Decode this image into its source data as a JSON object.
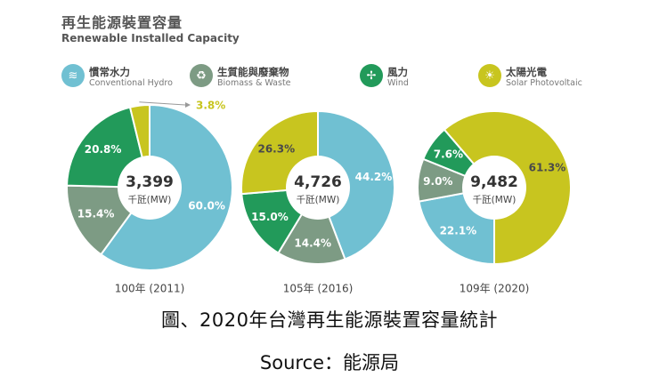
{
  "colors": {
    "hydro": "#70c0d2",
    "biomass": "#7d9b84",
    "wind": "#229a5a",
    "solar": "#c8c51f"
  },
  "header": {
    "title_zh": "再生能源裝置容量",
    "title_en": "Renewable Installed Capacity"
  },
  "legend": [
    {
      "key": "hydro",
      "zh": "慣常水力",
      "en": "Conventional Hydro",
      "icon": "water-icon",
      "glyph": "≋"
    },
    {
      "key": "biomass",
      "zh": "生質能與廢棄物",
      "en": "Biomass & Waste",
      "icon": "recycle-icon",
      "glyph": "♻"
    },
    {
      "key": "wind",
      "zh": "風力",
      "en": "Wind",
      "icon": "wind-turbine-icon",
      "glyph": "✢"
    },
    {
      "key": "solar",
      "zh": "太陽光電",
      "en": "Solar Photovoltaic",
      "icon": "sun-icon",
      "glyph": "☀"
    }
  ],
  "chart_data": [
    {
      "type": "pie",
      "year_label": "100年 (2011)",
      "total": "3,399",
      "unit": "千瓩(MW)",
      "slices": [
        {
          "key": "hydro",
          "value": 60.0,
          "label": "60.0%"
        },
        {
          "key": "biomass",
          "value": 15.4,
          "label": "15.4%"
        },
        {
          "key": "wind",
          "value": 20.8,
          "label": "20.8%"
        },
        {
          "key": "solar",
          "value": 3.8,
          "label": "3.8%"
        }
      ]
    },
    {
      "type": "pie",
      "year_label": "105年 (2016)",
      "total": "4,726",
      "unit": "千瓩(MW)",
      "slices": [
        {
          "key": "hydro",
          "value": 44.2,
          "label": "44.2%"
        },
        {
          "key": "biomass",
          "value": 14.4,
          "label": "14.4%"
        },
        {
          "key": "wind",
          "value": 15.0,
          "label": "15.0%"
        },
        {
          "key": "solar",
          "value": 26.3,
          "label": "26.3%"
        }
      ]
    },
    {
      "type": "pie",
      "year_label": "109年 (2020)",
      "total": "9,482",
      "unit": "千瓩(MW)",
      "slices": [
        {
          "key": "hydro",
          "value": 22.1,
          "label": "22.1%"
        },
        {
          "key": "biomass",
          "value": 9.0,
          "label": "9.0%"
        },
        {
          "key": "wind",
          "value": 7.6,
          "label": "7.6%"
        },
        {
          "key": "solar",
          "value": 61.3,
          "label": "61.3%"
        }
      ]
    }
  ],
  "caption": {
    "main": "圖、2020年台灣再生能源裝置容量統計",
    "source": "Source：能源局"
  }
}
